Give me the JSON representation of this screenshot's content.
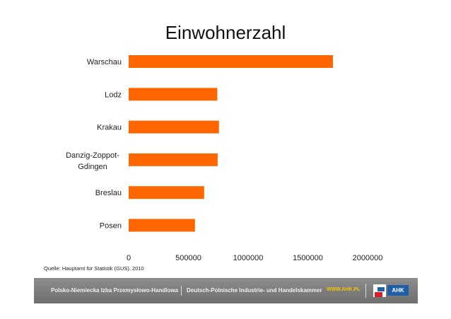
{
  "chart_data": {
    "type": "bar",
    "orientation": "horizontal",
    "title": "Einwohnerzahl",
    "categories": [
      "Warschau",
      "Lodz",
      "Krakau",
      "Danzig-Zoppot-Gdingen",
      "Breslau",
      "Posen"
    ],
    "category_lines": [
      [
        "Warschau"
      ],
      [
        "Lodz"
      ],
      [
        "Krakau"
      ],
      [
        "Danzig-Zoppot-",
        "Gdingen"
      ],
      [
        "Breslau"
      ],
      [
        "Posen"
      ]
    ],
    "values": [
      1710000,
      742000,
      756000,
      745000,
      632000,
      555000
    ],
    "xlim": [
      0,
      2000000
    ],
    "xticks": [
      "0",
      "500000",
      "1000000",
      "1500000",
      "2000000"
    ],
    "xlabel": "",
    "ylabel": "",
    "grid": false,
    "legend": "none",
    "bar_color": "#ff6600"
  },
  "source": "Quelle: Hauptamt für Statistik (GUS), 2010",
  "footer": {
    "left": "Polsko-Niemiecka Izba Przemysłowo-Handlowa",
    "middle": "Deutsch-Polnische Industrie- und Handelskammer",
    "url": "WWW.AHK.PL",
    "logo_text": "AHK"
  }
}
